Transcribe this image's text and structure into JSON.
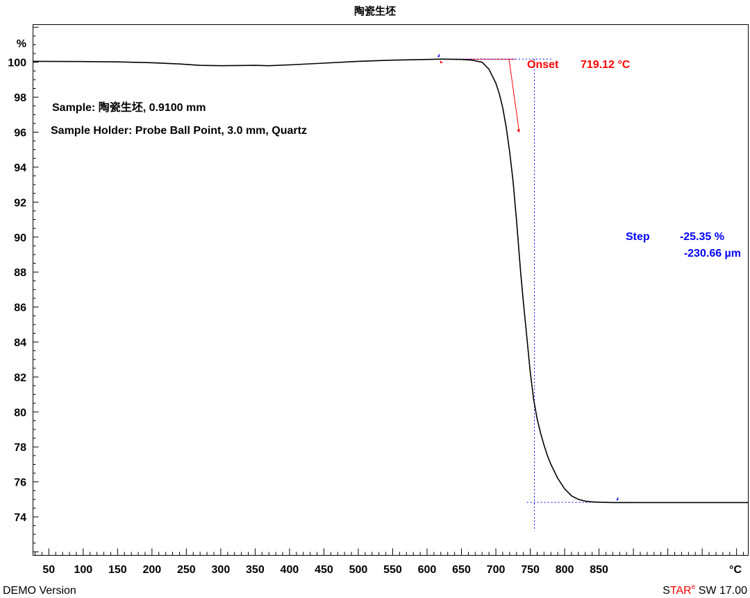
{
  "title": "陶瓷生坯",
  "footer": {
    "left": "DEMO Version",
    "brand_s": "S",
    "brand_tar": "TAR",
    "brand_e": "e",
    "brand_rest": " SW 17.00"
  },
  "colors": {
    "curve": "#000000",
    "onset": "#ff0000",
    "step": "#0000ff",
    "brand_accent": "#ff0000"
  },
  "chart_data": {
    "type": "line",
    "title": "陶瓷生坯",
    "xlabel": "",
    "ylabel": "",
    "x_unit": "°C",
    "y_unit": "%",
    "xlim": [
      27,
      1067
    ],
    "ylim": [
      71.8,
      102.15
    ],
    "x_ticks": [
      50,
      100,
      150,
      200,
      250,
      300,
      350,
      400,
      450,
      500,
      550,
      600,
      650,
      700,
      750,
      800,
      850
    ],
    "y_ticks": [
      74,
      76,
      78,
      80,
      82,
      84,
      86,
      88,
      90,
      92,
      94,
      96,
      98,
      100
    ],
    "grid": false,
    "series": [
      {
        "x": [
          27,
          100,
          150,
          200,
          240,
          270,
          300,
          350,
          370,
          400,
          450,
          500,
          550,
          600,
          620,
          650,
          665,
          680,
          690,
          700,
          705,
          710,
          715,
          720,
          725,
          730,
          733,
          736,
          740,
          745,
          750,
          755,
          760,
          765,
          770,
          775,
          780,
          790,
          800,
          810,
          820,
          830,
          840,
          850,
          870,
          890,
          900,
          910,
          1067
        ],
        "y": [
          100.05,
          100.04,
          100.02,
          99.97,
          99.9,
          99.82,
          99.8,
          99.82,
          99.8,
          99.85,
          99.95,
          100.05,
          100.12,
          100.16,
          100.18,
          100.16,
          100.12,
          100.0,
          99.6,
          98.8,
          98.2,
          97.4,
          96.3,
          94.9,
          93.2,
          91.0,
          89.5,
          88.0,
          86.3,
          84.3,
          82.3,
          80.7,
          79.6,
          78.8,
          78.1,
          77.5,
          77.0,
          76.2,
          75.6,
          75.2,
          75.0,
          74.9,
          74.86,
          74.84,
          74.82,
          74.82,
          74.82,
          74.82,
          74.82
        ]
      }
    ],
    "annotations": {
      "sample": "Sample: 陶瓷生坯, 0.9100 mm",
      "sample_holder": "Sample Holder: Probe Ball Point, 3.0 mm, Quartz",
      "onset_label": "Onset",
      "onset_value": "719.12 °C",
      "onset_x": 719.12,
      "onset_baseline_y": 100.17,
      "step_label": "Step",
      "step_percent": "-25.35 %",
      "step_length": "-230.66 µm",
      "step_x": 756,
      "step_top_y": 100.18,
      "step_bottom_y": 74.83
    }
  }
}
